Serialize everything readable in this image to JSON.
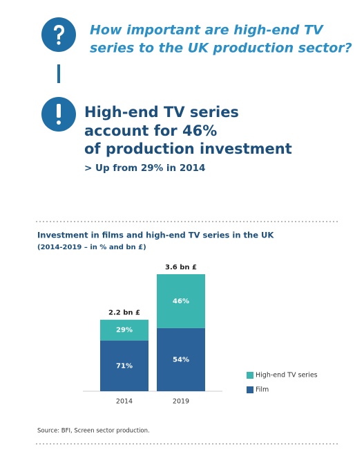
{
  "header": {
    "question": [
      "How important are high-end TV",
      "series to the UK production sector?"
    ],
    "statement": [
      "High-end TV series",
      "account for 46%",
      "of production investment"
    ],
    "note": "> Up from 29% in 2014"
  },
  "chart_data": {
    "type": "bar",
    "stacked": true,
    "title": "Investment in films and high-end TV series in the UK",
    "subtitle": "(2014-2019 – in % and bn £)",
    "categories": [
      "2014",
      "2019"
    ],
    "series": [
      {
        "name": "Film",
        "color": "#2a6299",
        "values": [
          71,
          54
        ],
        "value_labels": [
          "71%",
          "54%"
        ]
      },
      {
        "name": "High-end TV series",
        "color": "#3ab5b0",
        "values": [
          29,
          46
        ],
        "value_labels": [
          "29%",
          "46%"
        ]
      }
    ],
    "totals": {
      "values": [
        2.2,
        3.6
      ],
      "value_labels": [
        "2.2 bn £",
        "3.6 bn £"
      ]
    },
    "legend": "right"
  },
  "source": "Source:  BFI, Screen sector production."
}
